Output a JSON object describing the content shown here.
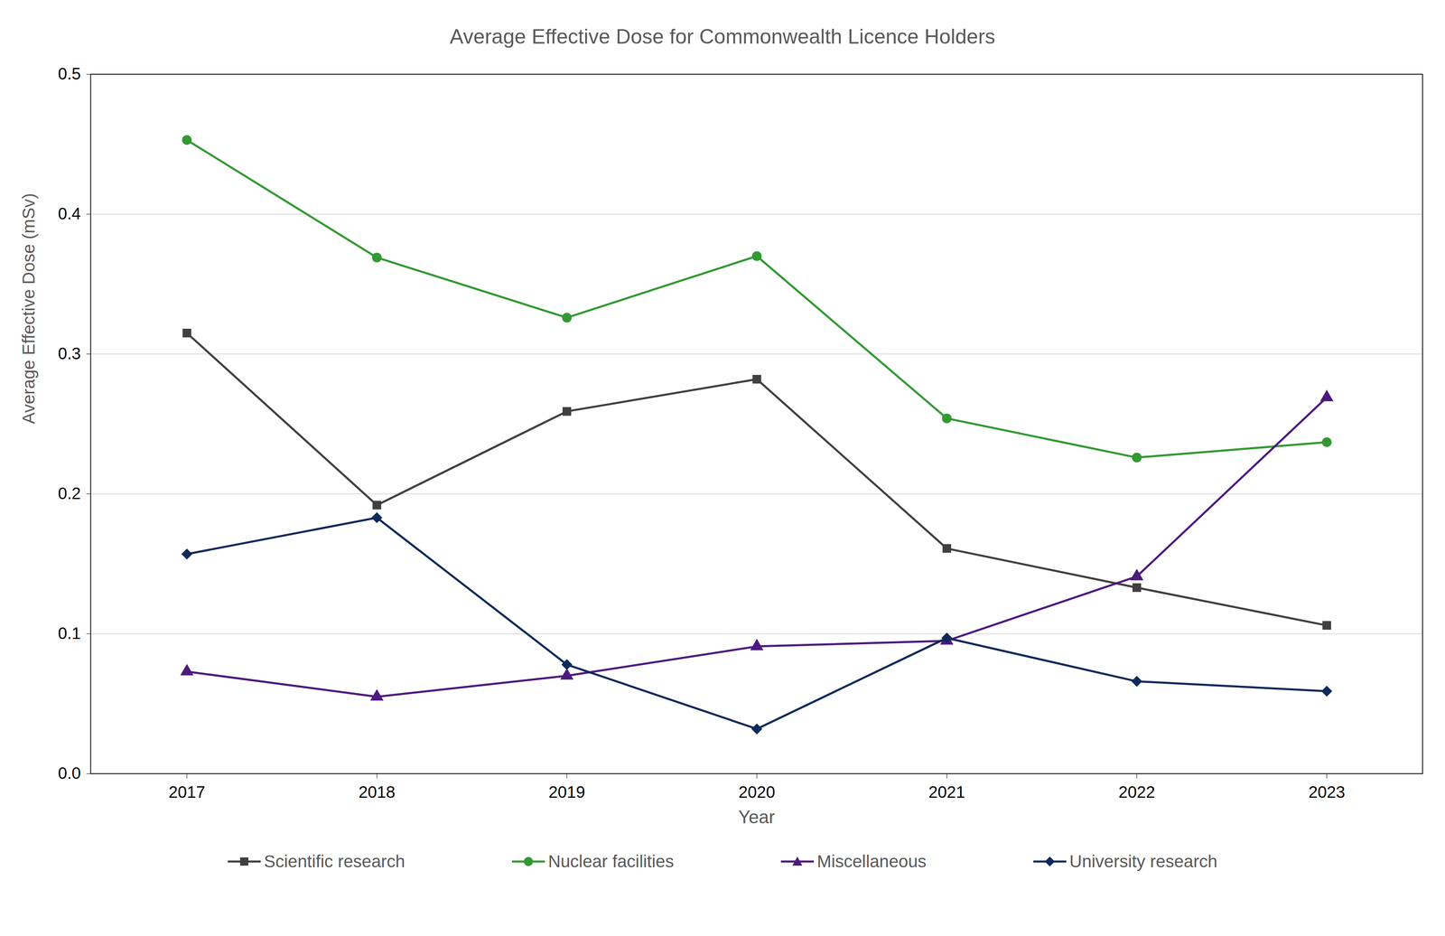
{
  "chart_data": {
    "type": "line",
    "title": "Average Effective Dose for Commonwealth Licence Holders",
    "x_label": "Year",
    "y_label": "Average Effective Dose (mSv)",
    "categories": [
      "2017",
      "2018",
      "2019",
      "2020",
      "2021",
      "2022",
      "2023"
    ],
    "series": [
      {
        "name": "Scientific research",
        "color": "#404040",
        "marker": "square",
        "values": [
          0.315,
          0.192,
          0.259,
          0.282,
          0.161,
          0.133,
          0.106
        ]
      },
      {
        "name": "Nuclear facilities",
        "color": "#339933",
        "marker": "circle",
        "values": [
          0.453,
          0.369,
          0.326,
          0.37,
          0.254,
          0.226,
          0.237
        ]
      },
      {
        "name": "Miscellaneous",
        "color": "#4d1a7f",
        "marker": "triangle",
        "values": [
          0.073,
          0.055,
          0.07,
          0.091,
          0.095,
          0.141,
          0.269
        ]
      },
      {
        "name": "University research",
        "color": "#0e2a5a",
        "marker": "diamond",
        "values": [
          0.157,
          0.183,
          0.078,
          0.032,
          0.097,
          0.066,
          0.059
        ]
      }
    ],
    "ylim": [
      0,
      0.5
    ],
    "yticks": [
      {
        "value": 0,
        "label": "0.0"
      },
      0.1,
      0.2,
      0.3,
      0.4,
      0.5
    ],
    "grid": true,
    "legend": "bottom"
  }
}
